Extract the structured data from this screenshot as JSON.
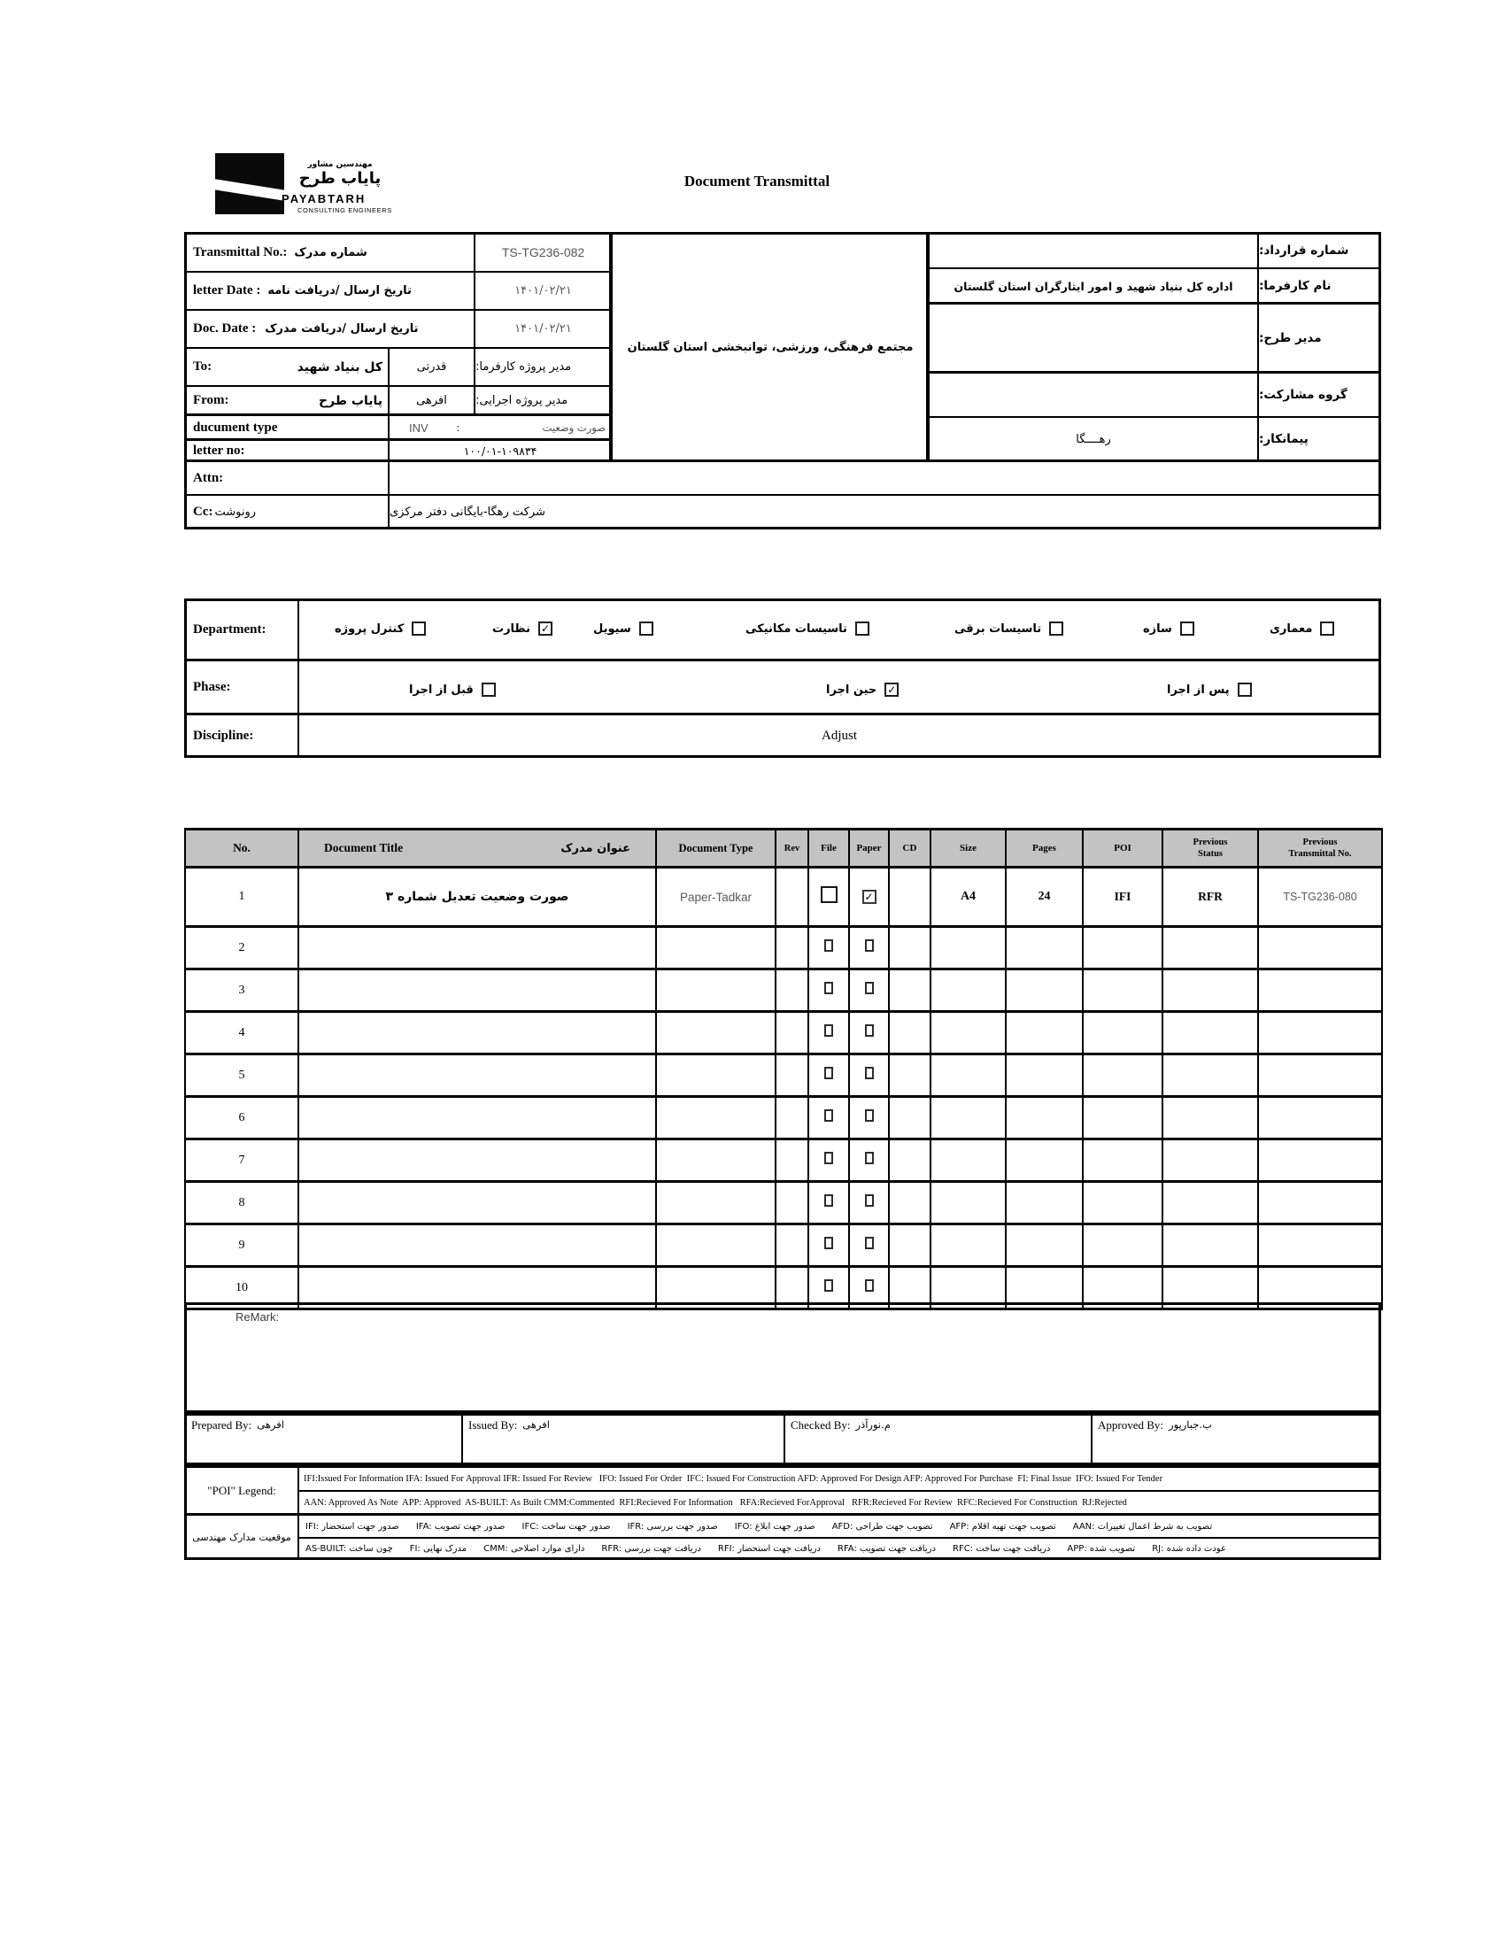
{
  "header": {
    "title": "Document Transmittal",
    "logo": {
      "persian_small": "مهندسین مشاور",
      "persian_large": "پایاب طرح",
      "name": "PAYABTARH",
      "subtitle": "CONSULTING ENGINEERS"
    }
  },
  "info": {
    "transmittal_no": {
      "label_en": "Transmittal No.:",
      "label_fa": "شماره مدرک",
      "value": "TS-TG236-082"
    },
    "letter_date": {
      "label_en": "letter Date  :",
      "label_fa": "تاریخ ارسال /دریافت نامه",
      "value": "۱۴۰۱/۰۲/۲۱"
    },
    "doc_date": {
      "label_en": "Doc. Date :",
      "label_fa": "تاریخ ارسال /دریافت مدرک",
      "value": "۱۴۰۱/۰۲/۲۱"
    },
    "to": {
      "label_en": "To:",
      "value_fa": "کل بنیاد شهید",
      "manager": "قدرتی",
      "manager_label": "مدیر پروژه کارفرما:"
    },
    "from": {
      "label_en": "From:",
      "value_fa": "پایاب طرح",
      "manager": "افرهی",
      "manager_label": "مدیر پروژه اجرایی:"
    },
    "document_type": {
      "label_en": "ducument type",
      "value": "INV",
      "colon": ":",
      "label_fa": "صورت وضعیت"
    },
    "letter_no": {
      "label_en": "letter no:",
      "value": "۱۰۰/۰۱-۱۰۹۸۳۴"
    },
    "attn": {
      "label_en": "Attn:",
      "value": ""
    },
    "cc": {
      "label_en": "Cc:",
      "label_fa": "رونوشت",
      "value": "شرکت رهگا-بایگانی دفتر مرکزی"
    },
    "project_name": "مجتمع فرهنگی، ورزشی، توانبخشی استان گلستان",
    "contract_no": {
      "label": "شماره قرارداد:",
      "value": ""
    },
    "client_name": {
      "label": "نام کارفرما:",
      "value": "اداره کل بنیاد شهید و امور ایثارگران استان گلستان"
    },
    "design_manager": {
      "label": "مدیر طرح:",
      "value": ""
    },
    "partnership_group": {
      "label": "گروه مشارکت:",
      "value": ""
    },
    "contractor": {
      "label": "پیمانکار:",
      "value": "رهــــگا"
    }
  },
  "department": {
    "label": "Department:",
    "items": [
      {
        "label": "کنترل پروژه",
        "checked": false
      },
      {
        "label": "نظارت",
        "checked": true
      },
      {
        "label": "سیویل",
        "checked": false
      },
      {
        "label": "تاسیسات مکانیکی",
        "checked": false
      },
      {
        "label": "تاسیسات برقی",
        "checked": false
      },
      {
        "label": "سازه",
        "checked": false
      },
      {
        "label": "معماری",
        "checked": false
      }
    ]
  },
  "phase": {
    "label": "Phase:",
    "items": [
      {
        "label": "قبل از اجرا",
        "checked": false
      },
      {
        "label": "حین اجرا",
        "checked": true
      },
      {
        "label": "پس از اجرا",
        "checked": false
      }
    ]
  },
  "discipline": {
    "label": "Discipline:",
    "value": "Adjust"
  },
  "doc_table": {
    "headers": {
      "no": "No.",
      "title_en": "Document Title",
      "title_fa": "عنوان مدرک",
      "type": "Document Type",
      "rev": "Rev",
      "file": "File",
      "paper": "Paper",
      "cd": "CD",
      "size": "Size",
      "pages": "Pages",
      "poi": "POI",
      "prev_status": "Previous\nStatus",
      "prev_transmittal": "Previous\nTransmittal No."
    },
    "rows": [
      {
        "no": "1",
        "title": "صورت وضعیت تعدیل شماره ۳",
        "type": "Paper-Tadkar",
        "rev": "",
        "file": false,
        "paper": true,
        "cd": "",
        "size": "A4",
        "pages": "24",
        "poi": "IFI",
        "prev_status": "RFR",
        "prev_transmittal": "TS-TG236-080"
      },
      {
        "no": "2",
        "title": "",
        "type": "",
        "rev": "",
        "file": false,
        "paper": false,
        "cd": "",
        "size": "",
        "pages": "",
        "poi": "",
        "prev_status": "",
        "prev_transmittal": ""
      },
      {
        "no": "3",
        "title": "",
        "type": "",
        "rev": "",
        "file": false,
        "paper": false,
        "cd": "",
        "size": "",
        "pages": "",
        "poi": "",
        "prev_status": "",
        "prev_transmittal": ""
      },
      {
        "no": "4",
        "title": "",
        "type": "",
        "rev": "",
        "file": false,
        "paper": false,
        "cd": "",
        "size": "",
        "pages": "",
        "poi": "",
        "prev_status": "",
        "prev_transmittal": ""
      },
      {
        "no": "5",
        "title": "",
        "type": "",
        "rev": "",
        "file": false,
        "paper": false,
        "cd": "",
        "size": "",
        "pages": "",
        "poi": "",
        "prev_status": "",
        "prev_transmittal": ""
      },
      {
        "no": "6",
        "title": "",
        "type": "",
        "rev": "",
        "file": false,
        "paper": false,
        "cd": "",
        "size": "",
        "pages": "",
        "poi": "",
        "prev_status": "",
        "prev_transmittal": ""
      },
      {
        "no": "7",
        "title": "",
        "type": "",
        "rev": "",
        "file": false,
        "paper": false,
        "cd": "",
        "size": "",
        "pages": "",
        "poi": "",
        "prev_status": "",
        "prev_transmittal": ""
      },
      {
        "no": "8",
        "title": "",
        "type": "",
        "rev": "",
        "file": false,
        "paper": false,
        "cd": "",
        "size": "",
        "pages": "",
        "poi": "",
        "prev_status": "",
        "prev_transmittal": ""
      },
      {
        "no": "9",
        "title": "",
        "type": "",
        "rev": "",
        "file": false,
        "paper": false,
        "cd": "",
        "size": "",
        "pages": "",
        "poi": "",
        "prev_status": "",
        "prev_transmittal": ""
      },
      {
        "no": "10",
        "title": "",
        "type": "",
        "rev": "",
        "file": false,
        "paper": false,
        "cd": "",
        "size": "",
        "pages": "",
        "poi": "",
        "prev_status": "",
        "prev_transmittal": ""
      }
    ]
  },
  "remark": {
    "label": "ReMark:"
  },
  "signatures": [
    {
      "label": "Prepared By:",
      "name": "افرهی"
    },
    {
      "label": "Issued By:",
      "name": "افرهی"
    },
    {
      "label": "Checked By:",
      "name": "م.نورآذر"
    },
    {
      "label": "Approved By:",
      "name": "ب.جبارپور"
    }
  ],
  "poi_legend": {
    "label": "\"POI\" Legend:",
    "line1": "IFI:Issued For Information IFA: Issued For Approval IFR: Issued For Review   IFO: Issued For Order  IFC: Issued For Construction AFD: Approved For Design AFP: Approved For Purchase  FI: Final Issue  IFO: Issued For Tender",
    "line2": "AAN: Approved As Note  APP: Approved  AS-BUILT: As Built CMM:Commented  RFI:Recieved For Information   RFA:Recieved ForApproval   RFR:Recieved For Review  RFC:Recieved For Construction  RJ:Rejected"
  },
  "fa_legend": {
    "label": "موقعیت مدارک مهندسی",
    "line1": "IFI: صدور جهت استحضار      IFA: صدور جهت تصویب      IFC: صدور جهت ساخت      IFR: صدور جهت بررسی      IFO: صدور جهت ابلاغ      AFD: تصویب جهت طراحی      AFP: تصویب جهت تهیه اقلام      AAN: تصویب به شرط اعمال تغییرات",
    "line2": "AS-BUILT: چون ساخت      FI: مدرک نهایی      CMM: دارای موارد اصلاحی      RFR: دریافت جهت بررسی      RFI: دریافت جهت استحضار      RFA: دریافت جهت تصویب      RFC: دریافت جهت ساخت      APP: تصویب شده      RJ: عودت داده شده"
  }
}
